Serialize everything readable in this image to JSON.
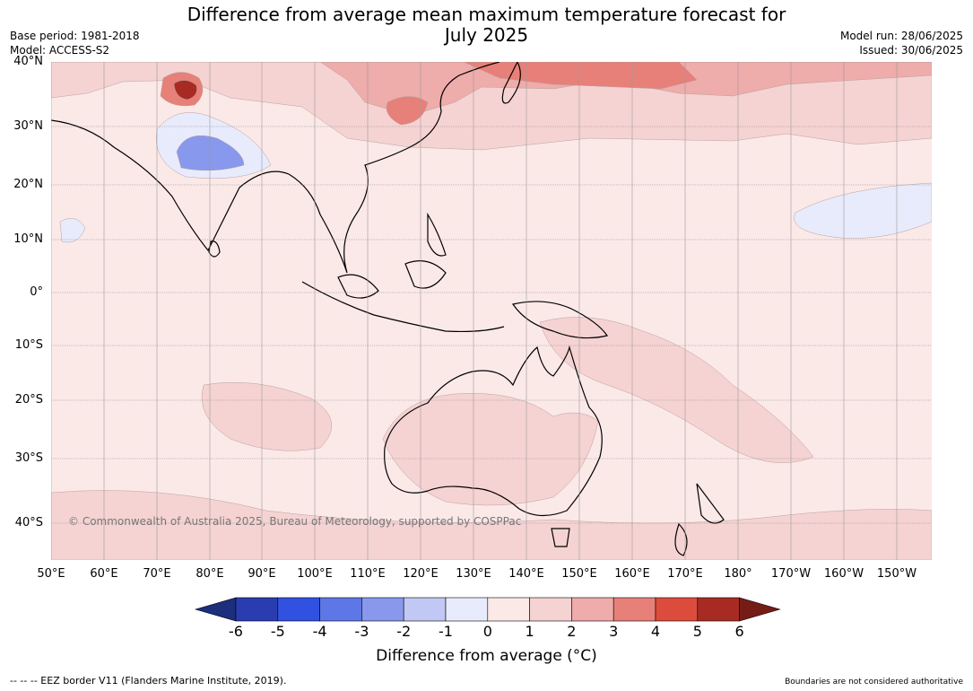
{
  "title": "Difference from average mean maximum temperature forecast for\nJuly 2025",
  "meta_left": [
    "Base period: 1981-2018",
    "Model: ACCESS-S2"
  ],
  "meta_right": [
    "Model run: 28/06/2025",
    "Issued: 30/06/2025"
  ],
  "lat_labels": [
    "40°N",
    "30°N",
    "20°N",
    "10°N",
    "0°",
    "10°S",
    "20°S",
    "30°S",
    "40°S"
  ],
  "lon_labels": [
    "50°E",
    "60°E",
    "70°E",
    "80°E",
    "90°E",
    "100°E",
    "110°E",
    "120°E",
    "130°E",
    "140°E",
    "150°E",
    "160°E",
    "170°E",
    "180°",
    "170°W",
    "160°W",
    "150°W"
  ],
  "copyright": "© Commonwealth of Australia 2025, Bureau of Meteorology, supported by COSPPac",
  "colorbar": {
    "ticks": [
      "-6",
      "-5",
      "-4",
      "-3",
      "-2",
      "-1",
      "0",
      "1",
      "2",
      "3",
      "4",
      "5",
      "6"
    ],
    "colors": [
      "#1c2e7c",
      "#2a3db0",
      "#3152e0",
      "#5d77e6",
      "#8898ec",
      "#c1c8f3",
      "#e8ebfb",
      "#fbe9e8",
      "#f5d3d2",
      "#eeacaa",
      "#e78079",
      "#dc4c3d",
      "#a82b23",
      "#751c17"
    ],
    "label": "Difference from average (°C)"
  },
  "footer_left": "-- -- -- EEZ border V11 (Flanders Marine Institute, 2019).",
  "footer_right": "Boundaries are not considered authoritative",
  "map_colors": {
    "background": "#fbe9e8",
    "light_warm": "#f5d3d2",
    "warm": "#eeacaa",
    "hot": "#e78079",
    "cool": "#e8ebfb",
    "cold": "#8898ec",
    "land_outline": "#000000",
    "grid": "#999999"
  }
}
